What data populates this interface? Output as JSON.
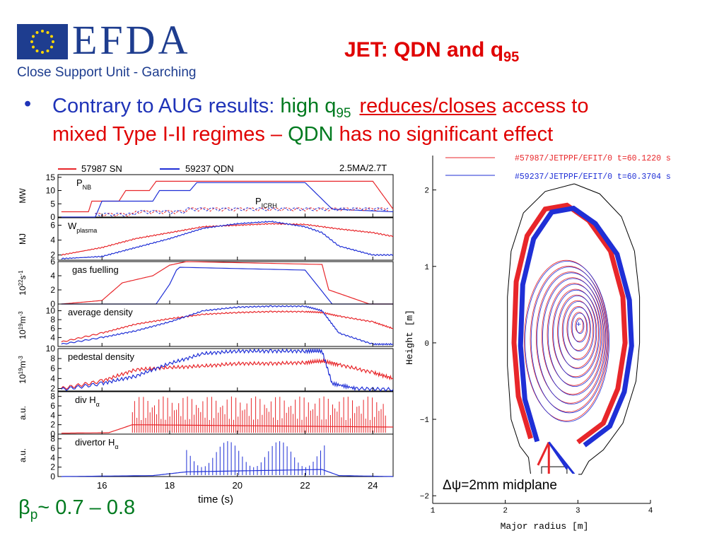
{
  "header": {
    "logo_text": "EFDA",
    "logo_subtitle": "Close Support Unit - Garching",
    "title_main": "JET: QDN and q",
    "title_sub": "95"
  },
  "bullet": {
    "marker": "•",
    "line1_a": "Contrary to AUG results: ",
    "line1_b": "high q",
    "line1_b_sub": "95",
    "line1_c": "reduces/closes",
    "line1_d": " access to",
    "line2_a": "mixed Type I-II regimes – ",
    "line2_b": "QDN",
    "line2_c": " has no significant effect"
  },
  "footer_note": {
    "symbol": "β",
    "sub": "p",
    "text": "~ 0.7 – 0.8"
  },
  "colors": {
    "sn": "#e8262a",
    "qdn": "#1f2fd6",
    "title_red": "#e00000",
    "text_blue": "#1f33b8",
    "text_green": "#007a1f",
    "logo_blue": "#1e3d8f"
  },
  "chart_data": [
    {
      "type": "line",
      "legend": [
        "57987 SN",
        "59237 QDN"
      ],
      "annotation": "2.5MA/2.7T",
      "xlabel": "time (s)",
      "xlim": [
        14.7,
        24.6
      ],
      "xticks": [
        "16",
        "18",
        "20",
        "22",
        "24"
      ],
      "panels": [
        {
          "label": "P_NB",
          "label_main": "P",
          "label_sub": "NB",
          "label2_main": "P",
          "label2_sub": "ICRH",
          "ylabel": "MW",
          "ylim": [
            0,
            16
          ],
          "yticks": [
            "15",
            "10",
            "5",
            "0"
          ],
          "series": [
            {
              "name": "57987 SN",
              "x": [
                14.8,
                15.6,
                15.7,
                16.5,
                16.7,
                17.4,
                17.6,
                24.0,
                24.6
              ],
              "y": [
                2,
                2,
                6,
                6,
                10,
                10,
                13.5,
                13.5,
                3
              ]
            },
            {
              "name": "59237 QDN",
              "x": [
                14.8,
                15.8,
                16.0,
                17.5,
                17.7,
                18.6,
                18.8,
                22.0,
                22.8,
                24.6
              ],
              "y": [
                0,
                0,
                6,
                6,
                10,
                10,
                13,
                13,
                3,
                2
              ]
            }
          ]
        },
        {
          "label": "W_plasma",
          "label_main": "W",
          "label_sub": "plasma",
          "ylabel": "MJ",
          "ylim": [
            1.3,
            7
          ],
          "yticks": [
            "6",
            "4",
            "2"
          ],
          "series": [
            {
              "name": "57987 SN",
              "x": [
                14.8,
                16,
                17,
                18,
                19,
                20,
                21,
                22,
                23,
                24,
                24.6
              ],
              "y": [
                2,
                3,
                4.2,
                5,
                5.8,
                6,
                6.2,
                6.1,
                5.5,
                5,
                4.5
              ]
            },
            {
              "name": "59237 QDN",
              "x": [
                14.8,
                16,
                17,
                18,
                19,
                20,
                21,
                22,
                22.5,
                23,
                24,
                24.6
              ],
              "y": [
                1.5,
                1.8,
                3,
                4.2,
                5.6,
                6.2,
                6.5,
                5.8,
                5,
                3.2,
                2,
                2
              ]
            }
          ]
        },
        {
          "label": "gas fuelling",
          "ylabel_main": "10",
          "ylabel_sup": "22",
          "ylabel_rest": "s",
          "ylabel_sup2": "-1",
          "ylim": [
            0,
            6
          ],
          "yticks": [
            "6",
            "4",
            "2",
            "0"
          ],
          "series": [
            {
              "name": "57987 SN",
              "x": [
                14.8,
                16.0,
                16.6,
                17.5,
                18.0,
                18.5,
                22.5,
                22.7,
                23.9,
                24.6
              ],
              "y": [
                0,
                0.5,
                3,
                4,
                5.5,
                6,
                5.6,
                2,
                0,
                0
              ]
            },
            {
              "name": "59237 QDN",
              "x": [
                14.8,
                17.6,
                18.0,
                18.2,
                18.3,
                22.0,
                22.8,
                24.6
              ],
              "y": [
                0,
                0,
                2.8,
                4.8,
                5.2,
                4.8,
                0,
                0
              ]
            }
          ]
        },
        {
          "label": "average density",
          "ylabel_main": "10",
          "ylabel_sup": "19",
          "ylabel_rest": "m",
          "ylabel_sup2": "-3",
          "ylim": [
            2,
            11.5
          ],
          "yticks": [
            "10",
            "8",
            "6",
            "4"
          ],
          "series": [
            {
              "name": "57987 SN",
              "x": [
                14.8,
                16,
                17,
                18,
                19,
                20,
                21,
                22,
                22.5,
                23,
                24,
                24.6
              ],
              "y": [
                3,
                5,
                7,
                8.2,
                9.2,
                9.6,
                9.8,
                9.8,
                9.6,
                8.8,
                7.5,
                6
              ]
            },
            {
              "name": "59237 QDN",
              "x": [
                14.8,
                16,
                17,
                18,
                19,
                20,
                21,
                22,
                22.5,
                23,
                24,
                24.6
              ],
              "y": [
                2.5,
                4,
                5.5,
                7.5,
                10,
                10.8,
                11,
                11,
                10,
                5,
                2.5,
                2.5
              ]
            }
          ]
        },
        {
          "label": "pedestal density",
          "ylabel_main": "10",
          "ylabel_sup": "19",
          "ylabel_rest": "m",
          "ylabel_sup2": "-3",
          "ylim": [
            1.5,
            10
          ],
          "yticks": [
            "10",
            "8",
            "6",
            "4",
            "2"
          ],
          "series": [
            {
              "name": "57987 SN",
              "x": [
                14.8,
                16,
                17,
                18,
                19,
                20,
                21,
                22,
                22.5,
                23,
                24,
                24.6
              ],
              "y": [
                2,
                3.5,
                5.8,
                6.2,
                6.5,
                7,
                7,
                7.2,
                7.5,
                6.8,
                5.2,
                4
              ]
            },
            {
              "name": "59237 QDN",
              "x": [
                14.8,
                16,
                17,
                18,
                19,
                20,
                21,
                22,
                22.5,
                22.8,
                23.5,
                24.6
              ],
              "y": [
                1.8,
                3,
                4.5,
                7,
                9,
                9.5,
                9.5,
                9.5,
                9.5,
                3,
                2,
                1.8
              ]
            }
          ]
        },
        {
          "label": "div H_α",
          "label_main": "div H",
          "label_sub": "α",
          "ylabel": "a.u.",
          "ylim": [
            0,
            9
          ],
          "yticks": [
            "8",
            "6",
            "4",
            "2",
            "0"
          ],
          "series": [
            {
              "name": "57987 SN",
              "x": [
                14.8,
                16.2,
                16.9,
                24.6
              ],
              "y": [
                0.2,
                0.3,
                2,
                1.5
              ]
            }
          ]
        },
        {
          "label": "divertor H_α",
          "label_main": "divertor H",
          "label_sub": "α",
          "ylabel": "a.u.",
          "ylim": [
            0,
            9
          ],
          "yticks": [
            "8",
            "6",
            "4",
            "2",
            "0"
          ],
          "series": [
            {
              "name": "59237 QDN",
              "x": [
                14.8,
                17.5,
                18.5,
                22.5,
                23.0,
                24.6
              ],
              "y": [
                0,
                0.2,
                1,
                1.5,
                0.2,
                0
              ]
            }
          ]
        }
      ]
    },
    {
      "type": "line",
      "legend": [
        "#57987/JETPPF/EFIT/0 t=60.1220 s",
        "#59237/JETPPF/EFIT/0 t=60.3704 s"
      ],
      "annotation": "Δψ=2mm midplane",
      "xlabel": "Major radius [m]",
      "ylabel": "Height [m]",
      "xlim": [
        1,
        4
      ],
      "ylim": [
        -2.1,
        2.45
      ],
      "xticks": [
        "1",
        "2",
        "3",
        "4"
      ],
      "yticks": [
        "2",
        "1",
        "0",
        "−1",
        "−2"
      ],
      "magnetic_axis": [
        3.02,
        0.25
      ]
    }
  ]
}
